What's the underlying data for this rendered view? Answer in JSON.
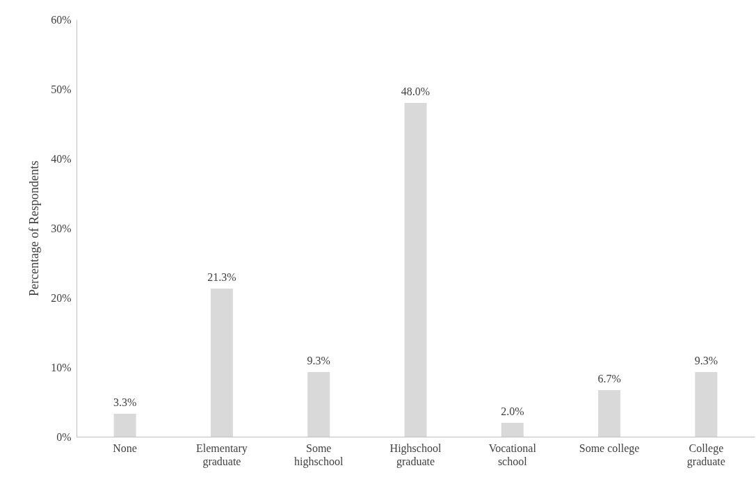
{
  "chart_data": {
    "type": "bar",
    "ylabel": "Percentage of Respondents",
    "categories": [
      "None",
      "Elementary graduate",
      "Some highschool",
      "Highschool graduate",
      "Vocational school",
      "Some college",
      "College graduate"
    ],
    "values": [
      3.3,
      21.3,
      9.3,
      48.0,
      2.0,
      6.7,
      9.3
    ],
    "value_labels": [
      "3.3%",
      "21.3%",
      "9.3%",
      "48.0%",
      "2.0%",
      "6.7%",
      "9.3%"
    ],
    "color": "#d9d9d9",
    "ylim": [
      0,
      60
    ],
    "yticks": [
      {
        "value": 0,
        "label": "0%"
      },
      {
        "value": 10,
        "label": "10%"
      },
      {
        "value": 20,
        "label": "20%"
      },
      {
        "value": 30,
        "label": "30%"
      },
      {
        "value": 40,
        "label": "40%"
      },
      {
        "value": 50,
        "label": "50%"
      },
      {
        "value": 60,
        "label": "60%"
      }
    ],
    "grid": false
  }
}
